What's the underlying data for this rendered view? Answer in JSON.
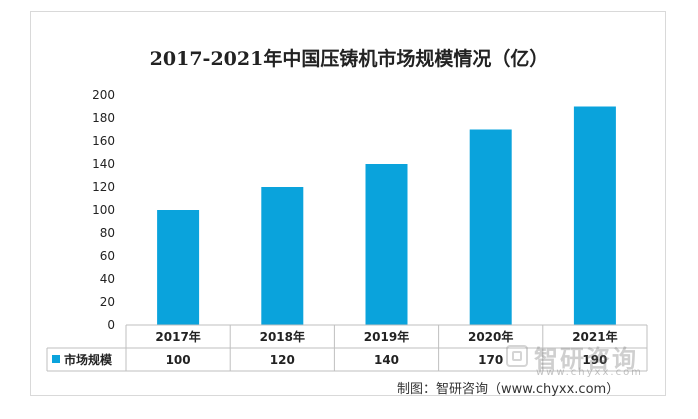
{
  "colors": {
    "bar": "#0aa3dc",
    "axis": "#bfbfbf",
    "text": "#222222"
  },
  "chart_data": {
    "type": "bar",
    "title": "2017-2021年中国压铸机市场规模情况（亿）",
    "categories": [
      "2017年",
      "2018年",
      "2019年",
      "2020年",
      "2021年"
    ],
    "series": [
      {
        "name": "市场规模",
        "values": [
          100,
          120,
          140,
          170,
          190
        ]
      }
    ],
    "ylim": [
      0,
      200
    ],
    "yticks": [
      0,
      20,
      40,
      60,
      80,
      100,
      120,
      140,
      160,
      180,
      200
    ],
    "grid": false,
    "data_table": true,
    "legend": "data-table-left"
  },
  "footer": {
    "source": "制图：智研咨询（www.chyxx.com）",
    "watermark": "智研咨询",
    "watermark_url": "www.chyxx.com"
  }
}
